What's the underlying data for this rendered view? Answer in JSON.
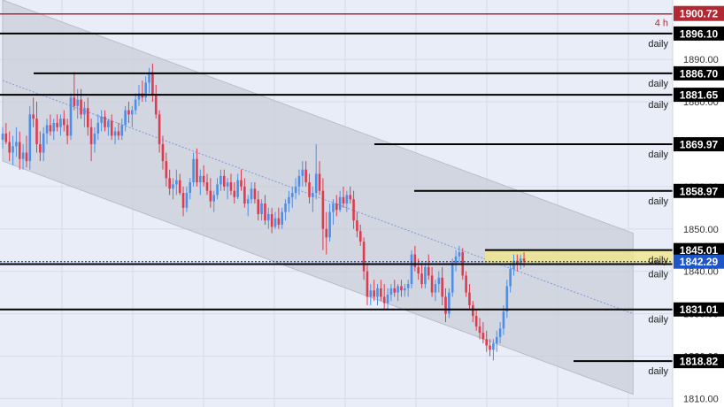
{
  "chart_data": {
    "type": "candlestick",
    "title": "",
    "ylim": [
      1808,
      1904
    ],
    "y_ticks": [
      {
        "value": 1890,
        "label": "1890.00"
      },
      {
        "value": 1880,
        "label": "1880.00"
      },
      {
        "value": 1870,
        "label": "1870.00"
      },
      {
        "value": 1860,
        "label": "1860.00"
      },
      {
        "value": 1850,
        "label": "1850.00"
      },
      {
        "value": 1840,
        "label": "1840.00"
      },
      {
        "value": 1830,
        "label": "1830.00"
      },
      {
        "value": 1820,
        "label": "1820.00"
      },
      {
        "value": 1810,
        "label": "1810.00"
      }
    ],
    "resistance_4h": {
      "value": 1900.72,
      "label": "1900.72",
      "timeframe": "4 h",
      "color": "#b22833"
    },
    "current_price": {
      "value": 1842.29,
      "label": "1842.29",
      "color": "#1e56c8"
    },
    "levels": [
      {
        "value": 1896.1,
        "label": "1896.10",
        "timeframe": "daily"
      },
      {
        "value": 1886.7,
        "label": "1886.70",
        "timeframe": "daily"
      },
      {
        "value": 1881.65,
        "label": "1881.65",
        "timeframe": "daily"
      },
      {
        "value": 1869.97,
        "label": "1869.97",
        "timeframe": "daily"
      },
      {
        "value": 1858.97,
        "label": "1858.97",
        "timeframe": "daily"
      },
      {
        "value": 1845.01,
        "label": "1845.01",
        "timeframe": "daily"
      },
      {
        "value": 1841.7,
        "label": "",
        "timeframe": "daily"
      },
      {
        "value": 1831.01,
        "label": "1831.01",
        "timeframe": "daily"
      },
      {
        "value": 1818.82,
        "label": "1818.82",
        "timeframe": "daily"
      }
    ],
    "supply_zone": {
      "from": 1841.7,
      "to": 1845.01,
      "color": "#f0e68c"
    },
    "channel": {
      "upper": [
        [
          0,
          1904
        ],
        [
          185,
          1849
        ]
      ],
      "lower": [
        [
          0,
          1866
        ],
        [
          185,
          1811
        ]
      ],
      "mid": [
        [
          0,
          1885
        ],
        [
          185,
          1830
        ]
      ]
    },
    "colors": {
      "up": "#4d8fe8",
      "down": "#de3b4e",
      "channel_fill": "#c9cdd8"
    },
    "candles": [
      [
        1871.0,
        1874.0,
        1869.0,
        1872.5
      ],
      [
        1872.5,
        1875.0,
        1870.0,
        1870.5
      ],
      [
        1870.5,
        1873.0,
        1866.0,
        1868.0
      ],
      [
        1868.0,
        1872.0,
        1865.0,
        1869.5
      ],
      [
        1869.5,
        1874.0,
        1867.0,
        1870.5
      ],
      [
        1870.5,
        1873.0,
        1864.0,
        1866.5
      ],
      [
        1866.5,
        1870.0,
        1864.0,
        1868.0
      ],
      [
        1868.0,
        1872.0,
        1864.5,
        1866.0
      ],
      [
        1866.0,
        1879.0,
        1864.0,
        1877.0
      ],
      [
        1877.0,
        1881.0,
        1874.0,
        1876.0
      ],
      [
        1876.0,
        1880.0,
        1868.0,
        1870.0
      ],
      [
        1870.0,
        1873.0,
        1866.0,
        1868.0
      ],
      [
        1868.0,
        1874.0,
        1866.0,
        1872.5
      ],
      [
        1872.5,
        1876.0,
        1870.0,
        1874.5
      ],
      [
        1874.5,
        1877.0,
        1872.0,
        1873.0
      ],
      [
        1873.0,
        1876.0,
        1871.0,
        1875.0
      ],
      [
        1875.0,
        1877.0,
        1873.0,
        1874.0
      ],
      [
        1874.0,
        1877.0,
        1872.0,
        1876.0
      ],
      [
        1876.0,
        1878.0,
        1873.0,
        1874.5
      ],
      [
        1874.5,
        1876.0,
        1870.0,
        1872.0
      ],
      [
        1872.0,
        1882.0,
        1871.0,
        1881.0
      ],
      [
        1881.0,
        1887.0,
        1878.0,
        1879.0
      ],
      [
        1879.0,
        1883.0,
        1876.0,
        1880.5
      ],
      [
        1880.5,
        1883.0,
        1876.0,
        1877.0
      ],
      [
        1877.0,
        1880.0,
        1874.0,
        1878.5
      ],
      [
        1878.5,
        1881.0,
        1872.0,
        1874.0
      ],
      [
        1874.0,
        1876.0,
        1866.0,
        1870.0
      ],
      [
        1870.0,
        1874.0,
        1868.0,
        1872.5
      ],
      [
        1872.5,
        1877.0,
        1871.0,
        1875.0
      ],
      [
        1875.0,
        1878.0,
        1873.0,
        1876.5
      ],
      [
        1876.5,
        1878.0,
        1873.0,
        1874.0
      ],
      [
        1874.0,
        1876.0,
        1872.0,
        1875.5
      ],
      [
        1875.5,
        1877.0,
        1871.0,
        1872.0
      ],
      [
        1872.0,
        1874.0,
        1870.0,
        1873.0
      ],
      [
        1873.0,
        1875.0,
        1871.0,
        1872.0
      ],
      [
        1872.0,
        1876.0,
        1871.0,
        1874.5
      ],
      [
        1874.5,
        1879.0,
        1873.0,
        1878.0
      ],
      [
        1878.0,
        1880.0,
        1875.0,
        1877.0
      ],
      [
        1877.0,
        1879.0,
        1874.0,
        1878.0
      ],
      [
        1878.0,
        1882.0,
        1877.0,
        1880.5
      ],
      [
        1880.5,
        1884.0,
        1879.0,
        1882.0
      ],
      [
        1882.0,
        1885.0,
        1880.0,
        1881.0
      ],
      [
        1881.0,
        1886.0,
        1880.0,
        1884.5
      ],
      [
        1884.5,
        1888.0,
        1882.0,
        1887.0
      ],
      [
        1887.0,
        1889.0,
        1880.0,
        1881.5
      ],
      [
        1881.5,
        1884.0,
        1876.0,
        1877.0
      ],
      [
        1877.0,
        1878.0,
        1868.0,
        1870.0
      ],
      [
        1870.0,
        1872.0,
        1864.0,
        1866.0
      ],
      [
        1866.0,
        1868.0,
        1860.0,
        1862.0
      ],
      [
        1862.0,
        1864.0,
        1858.0,
        1859.5
      ],
      [
        1859.5,
        1862.0,
        1857.0,
        1860.5
      ],
      [
        1860.5,
        1864.0,
        1858.0,
        1861.5
      ],
      [
        1861.5,
        1863.0,
        1858.0,
        1858.5
      ],
      [
        1858.5,
        1860.0,
        1853.0,
        1855.0
      ],
      [
        1855.0,
        1860.0,
        1854.0,
        1858.5
      ],
      [
        1858.5,
        1862.0,
        1857.0,
        1861.0
      ],
      [
        1861.0,
        1868.0,
        1860.0,
        1866.5
      ],
      [
        1866.5,
        1869.0,
        1860.0,
        1861.0
      ],
      [
        1861.0,
        1864.0,
        1858.0,
        1862.5
      ],
      [
        1862.5,
        1865.0,
        1860.0,
        1861.0
      ],
      [
        1861.0,
        1863.0,
        1858.0,
        1859.0
      ],
      [
        1859.0,
        1862.0,
        1855.0,
        1856.5
      ],
      [
        1856.5,
        1859.0,
        1854.0,
        1858.0
      ],
      [
        1858.0,
        1862.0,
        1857.0,
        1860.5
      ],
      [
        1860.5,
        1864.0,
        1859.0,
        1862.5
      ],
      [
        1862.5,
        1864.0,
        1859.0,
        1860.0
      ],
      [
        1860.0,
        1862.0,
        1857.0,
        1861.0
      ],
      [
        1861.0,
        1863.0,
        1858.0,
        1859.0
      ],
      [
        1859.0,
        1861.0,
        1856.0,
        1857.5
      ],
      [
        1857.5,
        1863.0,
        1857.0,
        1861.5
      ],
      [
        1861.5,
        1864.0,
        1859.0,
        1860.0
      ],
      [
        1860.0,
        1862.0,
        1855.0,
        1856.0
      ],
      [
        1856.0,
        1858.0,
        1853.0,
        1857.0
      ],
      [
        1857.0,
        1861.0,
        1856.0,
        1859.5
      ],
      [
        1859.5,
        1861.0,
        1856.0,
        1857.0
      ],
      [
        1857.0,
        1859.0,
        1852.0,
        1853.5
      ],
      [
        1853.5,
        1857.0,
        1852.0,
        1856.0
      ],
      [
        1856.0,
        1858.0,
        1851.0,
        1852.0
      ],
      [
        1852.0,
        1855.0,
        1850.0,
        1853.5
      ],
      [
        1853.5,
        1855.0,
        1849.0,
        1850.5
      ],
      [
        1850.5,
        1854.0,
        1850.0,
        1852.5
      ],
      [
        1852.5,
        1855.0,
        1850.0,
        1851.0
      ],
      [
        1851.0,
        1855.0,
        1850.0,
        1854.0
      ],
      [
        1854.0,
        1857.0,
        1852.0,
        1856.0
      ],
      [
        1856.0,
        1859.0,
        1854.0,
        1857.5
      ],
      [
        1857.5,
        1860.0,
        1855.0,
        1858.5
      ],
      [
        1858.5,
        1862.0,
        1857.0,
        1860.0
      ],
      [
        1860.0,
        1864.0,
        1858.0,
        1862.5
      ],
      [
        1862.5,
        1866.0,
        1860.0,
        1864.0
      ],
      [
        1864.0,
        1866.0,
        1860.0,
        1861.0
      ],
      [
        1861.0,
        1863.0,
        1856.0,
        1857.5
      ],
      [
        1857.5,
        1860.0,
        1854.0,
        1858.5
      ],
      [
        1858.5,
        1870.0,
        1857.0,
        1863.0
      ],
      [
        1863.0,
        1866.0,
        1858.0,
        1859.0
      ],
      [
        1859.0,
        1862.0,
        1845.0,
        1850.0
      ],
      [
        1850.0,
        1854.0,
        1844.0,
        1848.0
      ],
      [
        1848.0,
        1856.0,
        1847.0,
        1854.0
      ],
      [
        1854.0,
        1857.0,
        1851.0,
        1856.0
      ],
      [
        1856.0,
        1858.0,
        1853.0,
        1854.5
      ],
      [
        1854.5,
        1859.0,
        1854.0,
        1857.5
      ],
      [
        1857.5,
        1860.0,
        1855.0,
        1856.0
      ],
      [
        1856.0,
        1859.0,
        1854.0,
        1858.0
      ],
      [
        1858.0,
        1860.0,
        1856.0,
        1857.0
      ],
      [
        1857.0,
        1859.0,
        1850.0,
        1852.0
      ],
      [
        1852.0,
        1854.0,
        1848.0,
        1849.5
      ],
      [
        1849.5,
        1851.0,
        1846.0,
        1847.0
      ],
      [
        1847.0,
        1848.0,
        1838.0,
        1840.0
      ],
      [
        1840.0,
        1842.0,
        1832.0,
        1834.0
      ],
      [
        1834.0,
        1837.0,
        1832.0,
        1835.5
      ],
      [
        1835.5,
        1838.0,
        1833.0,
        1834.0
      ],
      [
        1834.0,
        1837.0,
        1832.0,
        1836.0
      ],
      [
        1836.0,
        1838.0,
        1833.0,
        1834.0
      ],
      [
        1834.0,
        1837.0,
        1831.0,
        1832.5
      ],
      [
        1832.5,
        1836.0,
        1831.0,
        1834.5
      ],
      [
        1834.5,
        1837.0,
        1833.0,
        1836.0
      ],
      [
        1836.0,
        1838.0,
        1834.0,
        1835.0
      ],
      [
        1835.0,
        1837.0,
        1833.0,
        1836.5
      ],
      [
        1836.5,
        1838.0,
        1834.0,
        1835.5
      ],
      [
        1835.5,
        1837.0,
        1834.0,
        1836.0
      ],
      [
        1836.0,
        1838.0,
        1834.0,
        1837.0
      ],
      [
        1837.0,
        1845.0,
        1836.0,
        1844.0
      ],
      [
        1844.0,
        1846.0,
        1840.0,
        1841.0
      ],
      [
        1841.0,
        1843.0,
        1838.0,
        1839.5
      ],
      [
        1839.5,
        1842.0,
        1836.0,
        1837.0
      ],
      [
        1837.0,
        1842.0,
        1836.0,
        1841.0
      ],
      [
        1841.0,
        1844.0,
        1838.0,
        1839.0
      ],
      [
        1839.0,
        1841.0,
        1834.0,
        1835.0
      ],
      [
        1835.0,
        1838.0,
        1833.0,
        1837.0
      ],
      [
        1837.0,
        1840.0,
        1835.0,
        1838.5
      ],
      [
        1838.5,
        1841.0,
        1832.0,
        1834.0
      ],
      [
        1834.0,
        1836.0,
        1828.0,
        1830.0
      ],
      [
        1830.0,
        1836.0,
        1829.0,
        1835.0
      ],
      [
        1835.0,
        1843.0,
        1834.0,
        1842.0
      ],
      [
        1842.0,
        1845.0,
        1840.0,
        1843.5
      ],
      [
        1843.5,
        1846.0,
        1842.0,
        1844.5
      ],
      [
        1844.5,
        1845.5,
        1838.0,
        1839.0
      ],
      [
        1839.0,
        1840.0,
        1834.0,
        1835.0
      ],
      [
        1835.0,
        1837.0,
        1831.0,
        1832.0
      ],
      [
        1832.0,
        1833.0,
        1828.0,
        1829.5
      ],
      [
        1829.5,
        1831.0,
        1826.0,
        1827.0
      ],
      [
        1827.0,
        1829.0,
        1824.0,
        1825.5
      ],
      [
        1825.5,
        1828.0,
        1823.0,
        1824.0
      ],
      [
        1824.0,
        1826.0,
        1821.0,
        1822.5
      ],
      [
        1822.5,
        1824.0,
        1820.0,
        1821.5
      ],
      [
        1821.5,
        1824.0,
        1819.0,
        1823.0
      ],
      [
        1823.0,
        1826.0,
        1821.0,
        1824.5
      ],
      [
        1824.5,
        1828.0,
        1823.0,
        1826.5
      ],
      [
        1826.5,
        1832.0,
        1825.0,
        1830.5
      ],
      [
        1830.5,
        1838.0,
        1829.0,
        1836.5
      ],
      [
        1836.5,
        1842.0,
        1835.0,
        1840.5
      ],
      [
        1840.5,
        1844.0,
        1839.0,
        1842.5
      ],
      [
        1842.5,
        1844.0,
        1840.0,
        1841.5
      ],
      [
        1841.5,
        1844.0,
        1840.5,
        1843.0
      ],
      [
        1843.0,
        1844.5,
        1841.0,
        1842.29
      ]
    ]
  }
}
